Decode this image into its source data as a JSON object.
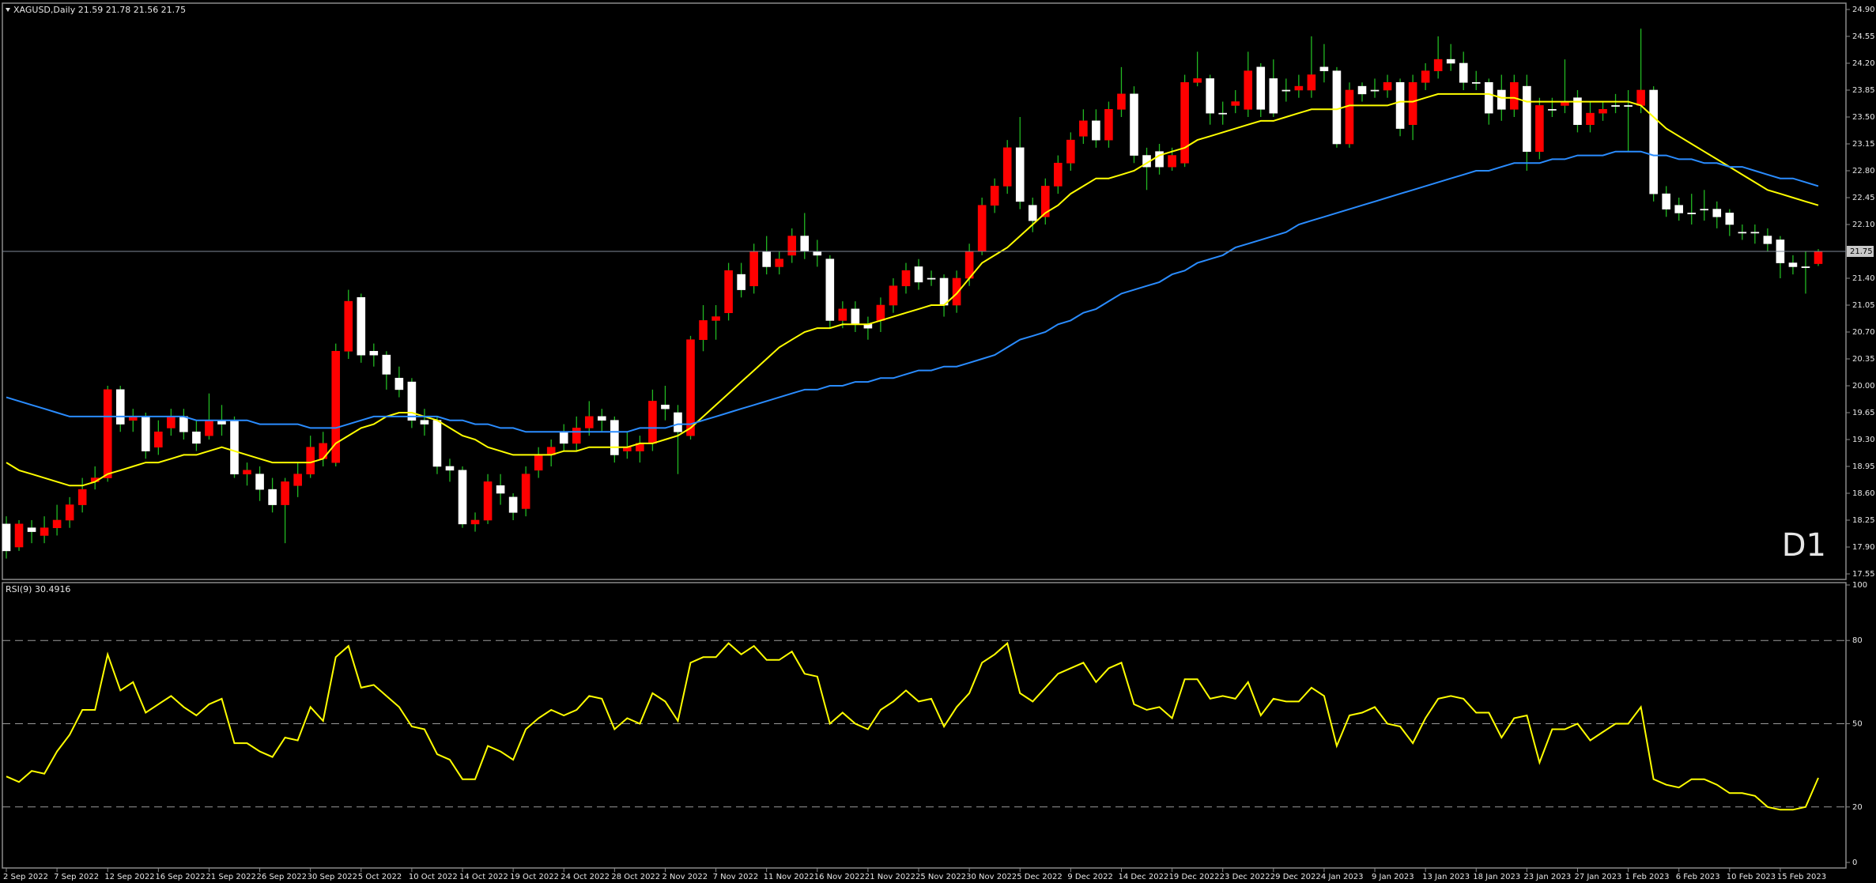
{
  "chart_data": [
    {
      "type": "candlestick",
      "title": "XAGUSD,Daily 21.59 21.78 21.56 21.75",
      "annotation": "D1",
      "up_color": "#ff0000",
      "down_color": "#ffffff",
      "wick_color": "#22b822",
      "annotation_color": "#e00000",
      "categories": [
        "2 Sep 2022",
        null,
        null,
        null,
        "7 Sep 2022",
        null,
        null,
        null,
        "12 Sep 2022",
        null,
        null,
        null,
        "16 Sep 2022",
        null,
        null,
        null,
        "21 Sep 2022",
        null,
        null,
        null,
        "26 Sep 2022",
        null,
        null,
        null,
        "30 Sep 2022",
        null,
        null,
        null,
        "5 Oct 2022",
        null,
        null,
        null,
        "10 Oct 2022",
        null,
        null,
        null,
        "14 Oct 2022",
        null,
        null,
        null,
        "19 Oct 2022",
        null,
        null,
        null,
        "24 Oct 2022",
        null,
        null,
        null,
        "28 Oct 2022",
        null,
        null,
        null,
        "2 Nov 2022",
        null,
        null,
        null,
        "7 Nov 2022",
        null,
        null,
        null,
        "11 Nov 2022",
        null,
        null,
        null,
        "16 Nov 2022",
        null,
        null,
        null,
        "21 Nov 2022",
        null,
        null,
        null,
        "25 Nov 2022",
        null,
        null,
        null,
        "30 Nov 2022",
        null,
        null,
        null,
        "5 Dec 2022",
        null,
        null,
        null,
        "9 Dec 2022",
        null,
        null,
        null,
        "14 Dec 2022",
        null,
        null,
        null,
        "19 Dec 2022",
        null,
        null,
        null,
        "23 Dec 2022",
        null,
        null,
        null,
        "29 Dec 2022",
        null,
        null,
        null,
        "4 Jan 2023",
        null,
        null,
        null,
        "9 Jan 2023",
        null,
        null,
        null,
        "13 Jan 2023",
        null,
        null,
        null,
        "18 Jan 2023",
        null,
        null,
        null,
        "23 Jan 2023",
        null,
        null,
        null,
        "27 Jan 2023",
        null,
        null,
        null,
        "1 Feb 2023",
        null,
        null,
        null,
        "6 Feb 2023",
        null,
        null,
        null,
        "10 Feb 2023",
        null,
        null,
        null,
        "15 Feb 2023",
        null,
        null,
        null
      ],
      "open": [
        18.2,
        17.9,
        18.15,
        18.05,
        18.15,
        18.25,
        18.45,
        18.75,
        18.8,
        19.95,
        19.55,
        19.6,
        19.2,
        19.45,
        19.6,
        19.4,
        19.35,
        19.55,
        19.55,
        18.85,
        18.85,
        18.65,
        18.45,
        18.7,
        18.85,
        19.05,
        19.0,
        20.45,
        21.15,
        20.45,
        20.4,
        20.1,
        20.05,
        19.55,
        19.55,
        18.95,
        18.9,
        18.2,
        18.25,
        18.7,
        18.55,
        18.4,
        18.9,
        19.1,
        19.4,
        19.25,
        19.45,
        19.6,
        19.55,
        19.15,
        19.15,
        19.25,
        19.75,
        19.65,
        19.35,
        20.6,
        20.85,
        20.95,
        21.45,
        21.3,
        21.75,
        21.55,
        21.7,
        21.95,
        21.75,
        21.65,
        20.85,
        21.0,
        20.8,
        20.85,
        21.05,
        21.3,
        21.55,
        21.4,
        21.4,
        21.05,
        21.4,
        21.75,
        22.35,
        22.6,
        23.1,
        22.35,
        22.2,
        22.6,
        22.9,
        23.25,
        23.45,
        23.2,
        23.6,
        23.8,
        23.0,
        23.05,
        22.85,
        22.9,
        23.95,
        24.0,
        23.55,
        23.65,
        23.6,
        24.15,
        24.0,
        23.85,
        23.85,
        23.85,
        24.15,
        24.1,
        23.15,
        23.9,
        23.85,
        23.85,
        23.95,
        23.4,
        23.95,
        24.1,
        24.25,
        24.2,
        23.95,
        23.95,
        23.85,
        23.6,
        23.9,
        23.05,
        23.6,
        23.65,
        23.75,
        23.4,
        23.55,
        23.65,
        23.65,
        23.65,
        23.85,
        22.5,
        22.35,
        22.25,
        22.3,
        22.3,
        22.25,
        22.0,
        22.0,
        21.95,
        21.9,
        21.6,
        21.55,
        21.59
      ],
      "high": [
        18.3,
        18.25,
        18.25,
        18.3,
        18.45,
        18.55,
        18.8,
        18.95,
        20.0,
        20.0,
        19.7,
        19.65,
        19.55,
        19.7,
        19.7,
        19.55,
        19.9,
        19.75,
        19.6,
        19.0,
        18.95,
        18.8,
        18.8,
        19.0,
        19.35,
        19.4,
        20.55,
        21.25,
        21.2,
        20.55,
        20.45,
        20.25,
        20.1,
        19.7,
        19.6,
        19.05,
        18.95,
        18.35,
        18.85,
        18.85,
        18.6,
        18.95,
        19.2,
        19.3,
        19.5,
        19.6,
        19.8,
        19.7,
        19.6,
        19.4,
        19.35,
        19.95,
        20.0,
        19.75,
        20.65,
        21.05,
        21.05,
        21.6,
        21.6,
        21.85,
        21.95,
        21.75,
        22.05,
        22.25,
        21.9,
        21.7,
        21.1,
        21.1,
        20.9,
        21.15,
        21.4,
        21.6,
        21.65,
        21.5,
        21.45,
        21.5,
        21.85,
        22.45,
        22.7,
        23.2,
        23.5,
        22.45,
        22.7,
        23.0,
        23.3,
        23.6,
        23.6,
        23.7,
        24.15,
        23.9,
        23.1,
        23.15,
        23.1,
        24.05,
        24.35,
        24.05,
        23.7,
        23.85,
        24.35,
        24.2,
        24.25,
        24.0,
        24.05,
        24.55,
        24.45,
        24.15,
        23.95,
        23.95,
        24.0,
        24.05,
        24.0,
        24.05,
        24.2,
        24.55,
        24.45,
        24.35,
        24.1,
        24.0,
        24.05,
        24.05,
        24.05,
        23.75,
        23.75,
        24.25,
        23.85,
        23.7,
        23.7,
        23.8,
        23.85,
        24.65,
        23.9,
        22.6,
        22.45,
        22.5,
        22.55,
        22.4,
        22.3,
        22.1,
        22.1,
        22.05,
        21.95,
        21.7,
        21.75,
        21.78
      ],
      "low": [
        17.75,
        17.85,
        17.95,
        17.95,
        18.05,
        18.15,
        18.35,
        18.65,
        18.75,
        19.4,
        19.4,
        19.05,
        19.1,
        19.35,
        19.3,
        19.15,
        19.3,
        19.35,
        18.8,
        18.7,
        18.5,
        18.35,
        17.95,
        18.55,
        18.8,
        18.95,
        18.95,
        20.35,
        20.3,
        20.25,
        19.95,
        19.85,
        19.45,
        19.35,
        18.85,
        18.75,
        18.15,
        18.1,
        18.2,
        18.45,
        18.25,
        18.3,
        18.8,
        18.95,
        19.15,
        19.15,
        19.35,
        19.4,
        19.0,
        19.05,
        19.0,
        19.15,
        19.55,
        18.85,
        19.3,
        20.45,
        20.6,
        20.85,
        21.15,
        21.2,
        21.45,
        21.45,
        21.6,
        21.65,
        21.55,
        20.75,
        20.75,
        20.7,
        20.6,
        20.7,
        20.95,
        21.2,
        21.25,
        21.3,
        20.9,
        20.95,
        21.3,
        21.7,
        22.25,
        22.5,
        22.3,
        22.0,
        22.1,
        22.5,
        22.8,
        23.15,
        23.1,
        23.1,
        23.5,
        22.9,
        22.55,
        22.75,
        22.8,
        22.85,
        23.9,
        23.4,
        23.4,
        23.55,
        23.5,
        23.5,
        23.5,
        23.7,
        23.75,
        23.75,
        23.95,
        23.1,
        23.1,
        23.7,
        23.75,
        23.75,
        23.25,
        23.2,
        23.85,
        24.0,
        24.1,
        23.85,
        23.85,
        23.4,
        23.45,
        23.5,
        22.8,
        22.95,
        23.5,
        23.55,
        23.3,
        23.3,
        23.45,
        23.55,
        23.05,
        23.55,
        22.4,
        22.2,
        22.15,
        22.1,
        22.15,
        22.05,
        21.95,
        21.9,
        21.85,
        21.75,
        21.4,
        21.45,
        21.2,
        21.56
      ],
      "close": [
        17.85,
        18.2,
        18.1,
        18.15,
        18.25,
        18.45,
        18.65,
        18.8,
        19.95,
        19.5,
        19.6,
        19.15,
        19.4,
        19.6,
        19.4,
        19.25,
        19.55,
        19.5,
        18.85,
        18.9,
        18.65,
        18.45,
        18.75,
        18.85,
        19.2,
        19.25,
        20.45,
        21.1,
        20.4,
        20.4,
        20.15,
        19.95,
        19.55,
        19.5,
        18.95,
        18.9,
        18.2,
        18.25,
        18.75,
        18.6,
        18.35,
        18.85,
        19.1,
        19.2,
        19.25,
        19.45,
        19.6,
        19.55,
        19.1,
        19.2,
        19.25,
        19.8,
        19.7,
        19.4,
        20.6,
        20.85,
        20.9,
        21.5,
        21.25,
        21.75,
        21.55,
        21.65,
        21.95,
        21.75,
        21.7,
        20.85,
        21.0,
        20.8,
        20.75,
        21.05,
        21.3,
        21.5,
        21.35,
        21.4,
        21.05,
        21.4,
        21.75,
        22.35,
        22.6,
        23.1,
        22.4,
        22.15,
        22.6,
        22.9,
        23.2,
        23.45,
        23.2,
        23.6,
        23.8,
        23.0,
        22.85,
        22.85,
        23.0,
        23.95,
        24.0,
        23.55,
        23.55,
        23.7,
        24.1,
        23.6,
        23.55,
        23.85,
        23.9,
        24.05,
        24.1,
        23.15,
        23.85,
        23.8,
        23.85,
        23.95,
        23.35,
        23.95,
        24.1,
        24.25,
        24.2,
        23.95,
        23.95,
        23.55,
        23.6,
        23.95,
        23.05,
        23.65,
        23.6,
        23.7,
        23.4,
        23.55,
        23.6,
        23.65,
        23.65,
        23.85,
        22.5,
        22.3,
        22.25,
        22.25,
        22.3,
        22.2,
        22.1,
        22.0,
        22.0,
        21.85,
        21.6,
        21.55,
        21.55,
        21.75
      ],
      "overlays": [
        {
          "color": "#ffff00",
          "values": [
            19.0,
            18.9,
            18.85,
            18.8,
            18.75,
            18.7,
            18.7,
            18.75,
            18.85,
            18.9,
            18.95,
            19.0,
            19.0,
            19.05,
            19.1,
            19.1,
            19.15,
            19.2,
            19.15,
            19.1,
            19.05,
            19.0,
            19.0,
            19.0,
            19.0,
            19.05,
            19.25,
            19.35,
            19.45,
            19.5,
            19.6,
            19.65,
            19.65,
            19.6,
            19.55,
            19.45,
            19.35,
            19.3,
            19.2,
            19.15,
            19.1,
            19.1,
            19.1,
            19.1,
            19.15,
            19.15,
            19.2,
            19.2,
            19.2,
            19.2,
            19.25,
            19.25,
            19.3,
            19.35,
            19.45,
            19.6,
            19.75,
            19.9,
            20.05,
            20.2,
            20.35,
            20.5,
            20.6,
            20.7,
            20.75,
            20.75,
            20.8,
            20.8,
            20.8,
            20.85,
            20.9,
            20.95,
            21.0,
            21.05,
            21.05,
            21.2,
            21.4,
            21.6,
            21.7,
            21.8,
            21.95,
            22.1,
            22.25,
            22.35,
            22.5,
            22.6,
            22.7,
            22.7,
            22.75,
            22.8,
            22.9,
            23.0,
            23.05,
            23.1,
            23.2,
            23.25,
            23.3,
            23.35,
            23.4,
            23.45,
            23.45,
            23.5,
            23.55,
            23.6,
            23.6,
            23.6,
            23.65,
            23.65,
            23.65,
            23.65,
            23.7,
            23.7,
            23.75,
            23.8,
            23.8,
            23.8,
            23.8,
            23.8,
            23.75,
            23.75,
            23.7,
            23.7,
            23.7,
            23.7,
            23.7,
            23.7,
            23.7,
            23.7,
            23.7,
            23.65,
            23.5,
            23.35,
            23.25,
            23.15,
            23.05,
            22.95,
            22.85,
            22.75,
            22.65,
            22.55,
            22.5,
            22.45,
            22.4,
            22.35
          ]
        },
        {
          "color": "#2a8cff",
          "values": [
            19.85,
            19.8,
            19.75,
            19.7,
            19.65,
            19.6,
            19.6,
            19.6,
            19.6,
            19.6,
            19.6,
            19.6,
            19.6,
            19.6,
            19.6,
            19.55,
            19.55,
            19.55,
            19.55,
            19.55,
            19.5,
            19.5,
            19.5,
            19.5,
            19.45,
            19.45,
            19.45,
            19.5,
            19.55,
            19.6,
            19.6,
            19.6,
            19.6,
            19.6,
            19.6,
            19.55,
            19.55,
            19.5,
            19.5,
            19.45,
            19.45,
            19.4,
            19.4,
            19.4,
            19.4,
            19.4,
            19.4,
            19.4,
            19.4,
            19.4,
            19.45,
            19.45,
            19.45,
            19.5,
            19.5,
            19.55,
            19.6,
            19.65,
            19.7,
            19.75,
            19.8,
            19.85,
            19.9,
            19.95,
            19.95,
            20.0,
            20.0,
            20.05,
            20.05,
            20.1,
            20.1,
            20.15,
            20.2,
            20.2,
            20.25,
            20.25,
            20.3,
            20.35,
            20.4,
            20.5,
            20.6,
            20.65,
            20.7,
            20.8,
            20.85,
            20.95,
            21.0,
            21.1,
            21.2,
            21.25,
            21.3,
            21.35,
            21.45,
            21.5,
            21.6,
            21.65,
            21.7,
            21.8,
            21.85,
            21.9,
            21.95,
            22.0,
            22.1,
            22.15,
            22.2,
            22.25,
            22.3,
            22.35,
            22.4,
            22.45,
            22.5,
            22.55,
            22.6,
            22.65,
            22.7,
            22.75,
            22.8,
            22.8,
            22.85,
            22.9,
            22.9,
            22.9,
            22.95,
            22.95,
            23.0,
            23.0,
            23.0,
            23.05,
            23.05,
            23.05,
            23.0,
            23.0,
            22.95,
            22.95,
            22.9,
            22.9,
            22.85,
            22.85,
            22.8,
            22.75,
            22.7,
            22.7,
            22.65,
            22.6
          ]
        }
      ],
      "ylim": [
        17.55,
        24.9
      ],
      "yticks": [
        {
          "value": 24.9,
          "label": "24.90"
        },
        24.55,
        {
          "value": 24.2,
          "label": "24.20"
        },
        23.85,
        {
          "value": 23.5,
          "label": "23.50"
        },
        23.15,
        {
          "value": 22.8,
          "label": "22.80"
        },
        22.45,
        {
          "value": 22.1,
          "label": "22.10"
        },
        {
          "value": 21.4,
          "label": "21.40"
        },
        21.05,
        {
          "value": 20.7,
          "label": "20.70"
        },
        20.35,
        {
          "value": 20,
          "label": "20.00"
        },
        19.65,
        {
          "value": 19.3,
          "label": "19.30"
        },
        18.95,
        {
          "value": 18.6,
          "label": "18.60"
        },
        18.25,
        {
          "value": 17.9,
          "label": "17.90"
        },
        17.55
      ],
      "grid": false
    },
    {
      "type": "line",
      "title": "RSI(9) 30.4916",
      "color": "#ffff00",
      "values": [
        31,
        29,
        33,
        32,
        40,
        46,
        55,
        55,
        75,
        62,
        65,
        54,
        57,
        60,
        56,
        53,
        57,
        59,
        43,
        43,
        40,
        38,
        45,
        44,
        56,
        51,
        74,
        78,
        63,
        64,
        60,
        56,
        49,
        48,
        39,
        37,
        30,
        30,
        42,
        40,
        37,
        48,
        52,
        55,
        53,
        55,
        60,
        59,
        48,
        52,
        50,
        61,
        58,
        51,
        72,
        74,
        74,
        79,
        75,
        78,
        73,
        73,
        76,
        68,
        67,
        50,
        54,
        50,
        48,
        55,
        58,
        62,
        58,
        59,
        49,
        56,
        61,
        72,
        75,
        79,
        61,
        58,
        63,
        68,
        70,
        72,
        65,
        70,
        72,
        57,
        55,
        56,
        52,
        66,
        66,
        59,
        60,
        59,
        65,
        53,
        59,
        58,
        58,
        63,
        60,
        42,
        53,
        54,
        56,
        50,
        49,
        43,
        52,
        59,
        60,
        59,
        54,
        54,
        45,
        52,
        53,
        36,
        48,
        48,
        50,
        44,
        47,
        50,
        50,
        56,
        30,
        28,
        27,
        30,
        30,
        28,
        25,
        25,
        24,
        20,
        19,
        19,
        20,
        30.4916
      ],
      "ylim": [
        0,
        100
      ],
      "yticks": [
        100,
        80,
        50,
        20,
        0
      ],
      "levels": [
        80,
        50,
        20
      ],
      "grid": false
    }
  ]
}
